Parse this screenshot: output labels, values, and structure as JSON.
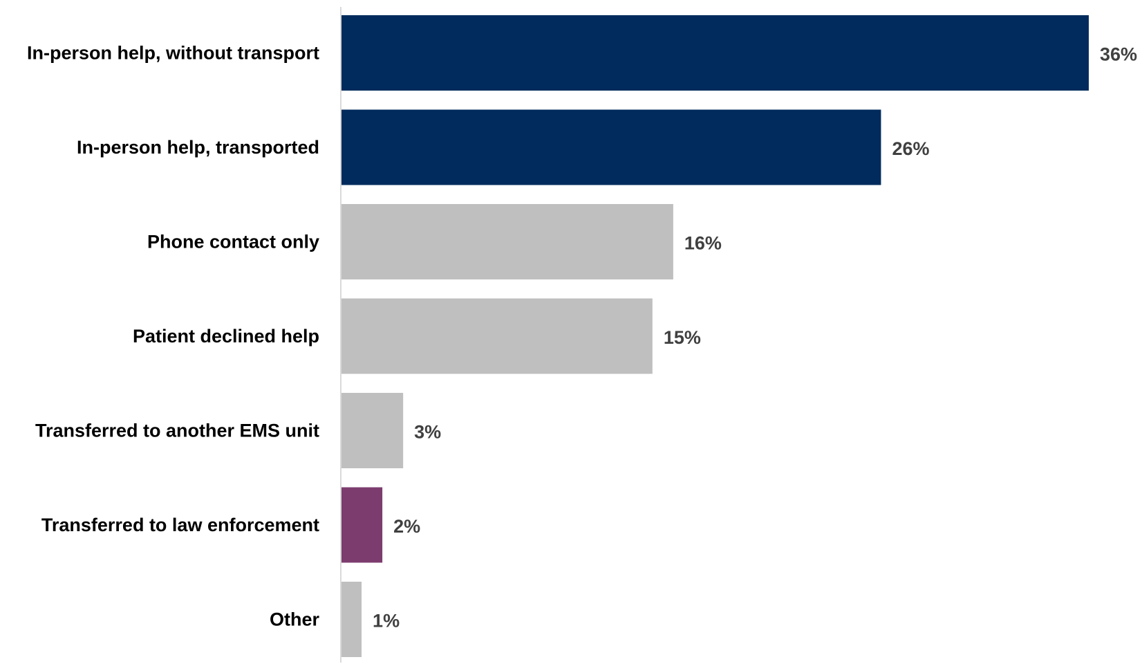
{
  "chart_data": {
    "type": "bar",
    "orientation": "horizontal",
    "categories": [
      "In-person help, without transport",
      "In-person help, transported",
      "Phone contact only",
      "Patient declined help",
      "Transferred to another EMS unit",
      "Transferred to law enforcement",
      "Other"
    ],
    "values": [
      36,
      26,
      16,
      15,
      3,
      2,
      1
    ],
    "value_labels": [
      "36%",
      "26%",
      "16%",
      "15%",
      "3%",
      "2%",
      "1%"
    ],
    "bar_colors": [
      "#002B5C",
      "#002B5C",
      "#BFBFBF",
      "#BFBFBF",
      "#BFBFBF",
      "#7D3C6E",
      "#BFBFBF"
    ],
    "axis_color": "#D9D9D9",
    "label_color": "#000000",
    "value_label_color": "#404040",
    "xlim": [
      0,
      36
    ],
    "grid": false,
    "legend": "none",
    "title": "",
    "xlabel": "",
    "ylabel": ""
  }
}
